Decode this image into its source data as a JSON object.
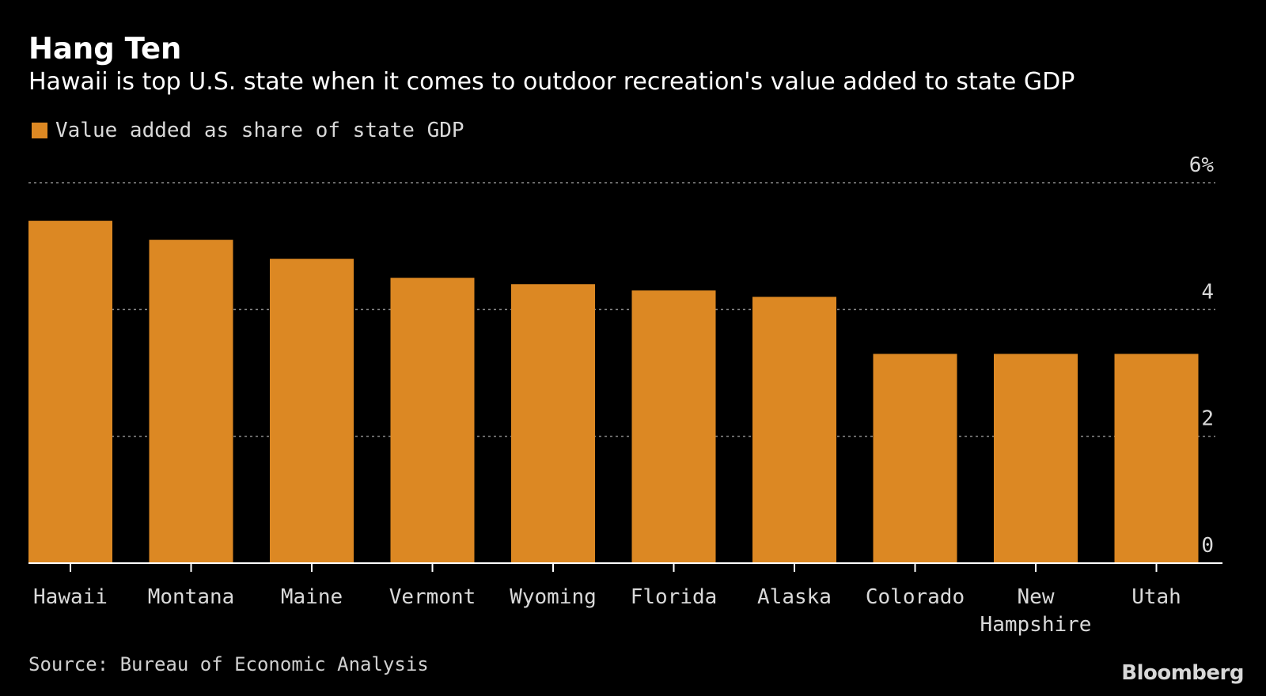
{
  "header": {
    "title": "Hang Ten",
    "subtitle": "Hawaii is top U.S. state when it comes to outdoor recreation's value added to state GDP"
  },
  "legend": {
    "label": "Value added as share of state GDP"
  },
  "footer": {
    "source": "Source: Bureau of Economic Analysis",
    "brand": "Bloomberg"
  },
  "colors": {
    "background": "#000000",
    "bar": "#dc8823",
    "grid": "#8a8a8a",
    "axis": "#ffffff",
    "text": "#ffffff",
    "muted_text": "#d9d9d9"
  },
  "chart_data": {
    "type": "bar",
    "categories": [
      "Hawaii",
      "Montana",
      "Maine",
      "Vermont",
      "Wyoming",
      "Florida",
      "Alaska",
      "Colorado",
      "New Hampshire",
      "Utah"
    ],
    "category_labels": [
      [
        "Hawaii"
      ],
      [
        "Montana"
      ],
      [
        "Maine"
      ],
      [
        "Vermont"
      ],
      [
        "Wyoming"
      ],
      [
        "Florida"
      ],
      [
        "Alaska"
      ],
      [
        "Colorado"
      ],
      [
        "New",
        "Hampshire"
      ],
      [
        "Utah"
      ]
    ],
    "series": [
      {
        "name": "Value added as share of state GDP",
        "values": [
          5.4,
          5.1,
          4.8,
          4.5,
          4.4,
          4.3,
          4.2,
          3.3,
          3.3,
          3.3
        ]
      }
    ],
    "ylim": [
      0,
      6
    ],
    "yticks": [
      0,
      2,
      4,
      6
    ],
    "ytick_labels": [
      "0",
      "2",
      "4",
      "6%"
    ],
    "yaxis_side": "right",
    "grid": true,
    "legend_position": "top-left"
  }
}
